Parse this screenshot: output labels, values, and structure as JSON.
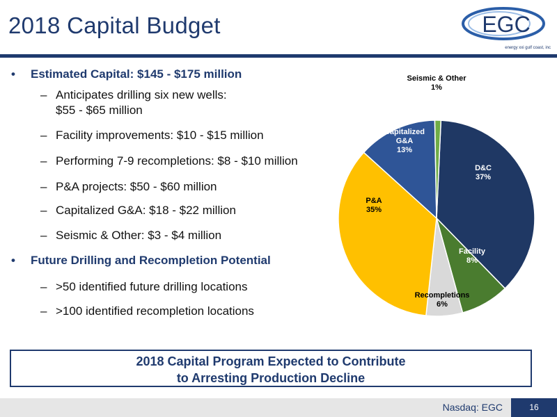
{
  "title": "2018 Capital Budget",
  "logo": {
    "text": "EGC",
    "tagline": "energy xxi gulf coast, inc"
  },
  "bullets": [
    {
      "text": "Estimated Capital: $145 - $175 million",
      "subs": [
        [
          "Anticipates drilling six new wells:",
          "$55 - $65 million"
        ],
        [
          "Facility improvements: $10 - $15 million"
        ],
        [
          "Performing 7-9 recompletions: $8 - $10 million"
        ],
        [
          "P&A projects: $50 - $60 million"
        ],
        [
          "Capitalized G&A: $18 - $22 million"
        ],
        [
          "Seismic & Other: $3 - $4 million"
        ]
      ]
    },
    {
      "text": "Future Drilling and Recompletion Potential",
      "subs": [
        [
          ">50 identified future drilling locations"
        ],
        [
          ">100 identified recompletion locations"
        ]
      ]
    }
  ],
  "chart_data": {
    "type": "pie",
    "slices": [
      {
        "label": "D&C",
        "value": 37,
        "pct": "37%",
        "color": "#1f3864"
      },
      {
        "label": "Facility",
        "value": 8,
        "pct": "8%",
        "color": "#4a7c2f"
      },
      {
        "label": "Recompletions",
        "value": 6,
        "pct": "6%",
        "color": "#d9d9d9"
      },
      {
        "label": "P&A",
        "value": 35,
        "pct": "35%",
        "color": "#ffc000"
      },
      {
        "label": "Capitalized G&A",
        "value": 13,
        "pct": "13%",
        "color": "#2f5597"
      },
      {
        "label": "Seismic & Other",
        "value": 1,
        "pct": "1%",
        "color": "#70ad47"
      }
    ],
    "title": ""
  },
  "callout": {
    "line1": "2018 Capital Program Expected to Contribute",
    "line2": "to Arresting Production Decline"
  },
  "footer": {
    "text": "Nasdaq: EGC",
    "page": "16"
  }
}
